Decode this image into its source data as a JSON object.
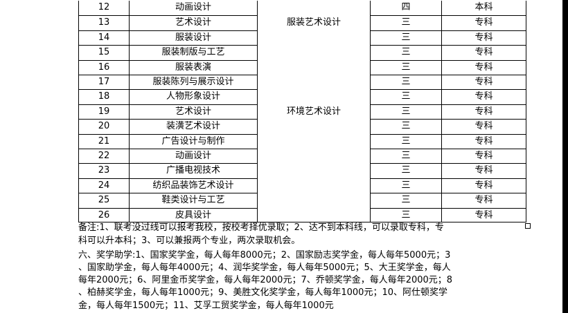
{
  "table": {
    "rows": [
      {
        "no": "12",
        "major": "动画设计",
        "years": "四",
        "level": "本科"
      },
      {
        "no": "13",
        "major": "艺术设计",
        "years": "三",
        "level": "专科"
      },
      {
        "no": "14",
        "major": "服装设计",
        "years": "三",
        "level": "专科"
      },
      {
        "no": "15",
        "major": "服装制版与工艺",
        "years": "三",
        "level": "专科"
      },
      {
        "no": "16",
        "major": "服装表演",
        "years": "三",
        "level": "专科"
      },
      {
        "no": "17",
        "major": "服装陈列与展示设计",
        "years": "三",
        "level": "专科"
      },
      {
        "no": "18",
        "major": "人物形象设计",
        "years": "三",
        "level": "专科"
      },
      {
        "no": "19",
        "major": "艺术设计",
        "years": "三",
        "level": "专科"
      },
      {
        "no": "20",
        "major": "装潢艺术设计",
        "years": "三",
        "level": "专科"
      },
      {
        "no": "21",
        "major": "广告设计与制作",
        "years": "三",
        "level": "专科"
      },
      {
        "no": "22",
        "major": "动画设计",
        "years": "三",
        "level": "专科"
      },
      {
        "no": "23",
        "major": "广播电视技术",
        "years": "三",
        "level": "专科"
      },
      {
        "no": "24",
        "major": "纺织品装饰艺术设计",
        "years": "三",
        "level": "专科"
      },
      {
        "no": "25",
        "major": "鞋类设计与工艺",
        "years": "三",
        "level": "专科"
      },
      {
        "no": "26",
        "major": "皮具设计",
        "years": "三",
        "level": "专科"
      }
    ],
    "categories": [
      {
        "label": "服装艺术设计",
        "row": 1
      },
      {
        "label": "环境艺术设计",
        "row": 7
      }
    ]
  },
  "notes": [
    "备注:1、联考没过线可以报考我校，按校考择优录取；2、达不到本科线，可以录取专科，专",
    "科可以升本科；3、可以兼报两个专业，两次录取机会。",
    "六、奖学助学:1、国家奖学金，每人每年8000元；2、国家励志奖学金，每人每年5000元；3",
    "、国家助学金，每人每年4000元；4、润华奖学金，每人每年5000元；5、大王奖学金，每人",
    "每年2000元；6、阿里金币奖学金，每人每年2000元；7、乔顿奖学金，每人每年2000元；8",
    "、柏赫奖学金，每人每年1000元；9、美胜文化奖学金，每人每年1000元；10、阿仕顿奖学",
    "金，每人每年1500元；11、艾孚工贸奖学金，每人每年1000元"
  ]
}
